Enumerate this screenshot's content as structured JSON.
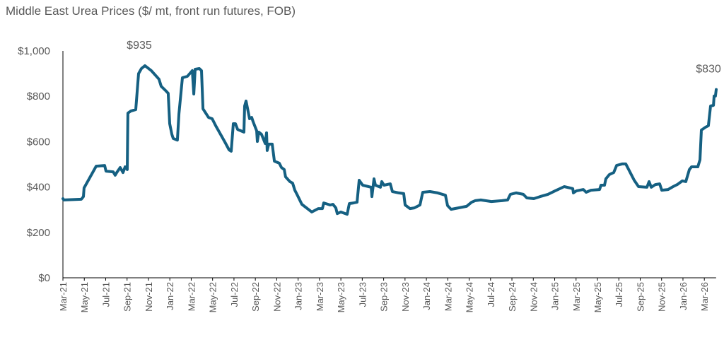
{
  "chart_data": {
    "type": "line",
    "title": "Middle East Urea Prices ($/ mt, front run futures, FOB)",
    "xlabel": "",
    "ylabel": "",
    "x_units": "months since Mar-21",
    "xlim": [
      0,
      61.1
    ],
    "ylim": [
      0,
      1000
    ],
    "grid": false,
    "legend": "none",
    "y_ticks": [
      0,
      200,
      400,
      600,
      800,
      1000
    ],
    "y_tick_labels": [
      "$0",
      "$200",
      "$400",
      "$600",
      "$800",
      "$1,000"
    ],
    "x_tick_labels": [
      "Mar-21",
      "May-21",
      "Jul-21",
      "Sep-21",
      "Nov-21",
      "Jan-22",
      "Mar-22",
      "May-22",
      "Jul-22",
      "Sep-22",
      "Nov-22",
      "Jan-23",
      "Mar-23",
      "May-23",
      "Jul-23",
      "Sep-23",
      "Nov-23",
      "Jan-24",
      "Mar-24",
      "May-24",
      "Jul-24",
      "Sep-24",
      "Nov-24",
      "Jan-25",
      "Mar-25",
      "May-25",
      "Jul-25",
      "Sep-25",
      "Nov-25",
      "Jan-26",
      "Mar-26"
    ],
    "x_tick_step_months": 2,
    "line_color": "#156082",
    "annotations": [
      {
        "text": "$935",
        "x": 7.67,
        "y": 935
      },
      {
        "text": "$830",
        "x": 61.11,
        "y": 830
      }
    ],
    "series": [
      {
        "name": "Middle East Urea",
        "points": [
          [
            0,
            349
          ],
          [
            0.07,
            343
          ],
          [
            1.72,
            346
          ],
          [
            1.92,
            358
          ],
          [
            1.98,
            396
          ],
          [
            3.11,
            492
          ],
          [
            3.9,
            495
          ],
          [
            4.03,
            470
          ],
          [
            4.7,
            467
          ],
          [
            4.89,
            452
          ],
          [
            5.03,
            464
          ],
          [
            5.36,
            486
          ],
          [
            5.62,
            464
          ],
          [
            5.82,
            489
          ],
          [
            6.02,
            477
          ],
          [
            6.08,
            726
          ],
          [
            6.35,
            735
          ],
          [
            6.81,
            741
          ],
          [
            7.08,
            900
          ],
          [
            7.34,
            922
          ],
          [
            7.67,
            935
          ],
          [
            8.27,
            913
          ],
          [
            8.99,
            875
          ],
          [
            9.19,
            844
          ],
          [
            9.59,
            826
          ],
          [
            9.85,
            813
          ],
          [
            9.99,
            679
          ],
          [
            10.19,
            632
          ],
          [
            10.32,
            614
          ],
          [
            10.71,
            607
          ],
          [
            10.85,
            723
          ],
          [
            11.18,
            882
          ],
          [
            11.64,
            888
          ],
          [
            12.1,
            913
          ],
          [
            12.24,
            810
          ],
          [
            12.37,
            919
          ],
          [
            12.76,
            922
          ],
          [
            12.96,
            913
          ],
          [
            13.1,
            745
          ],
          [
            13.62,
            707
          ],
          [
            13.96,
            701
          ],
          [
            14.29,
            670
          ],
          [
            15.15,
            598
          ],
          [
            15.54,
            564
          ],
          [
            15.74,
            558
          ],
          [
            15.94,
            679
          ],
          [
            16.14,
            679
          ],
          [
            16.34,
            654
          ],
          [
            16.93,
            642
          ],
          [
            17.0,
            757
          ],
          [
            17.13,
            779
          ],
          [
            17.46,
            701
          ],
          [
            17.66,
            707
          ],
          [
            17.79,
            688
          ],
          [
            18.12,
            648
          ],
          [
            18.19,
            601
          ],
          [
            18.32,
            642
          ],
          [
            18.58,
            632
          ],
          [
            18.92,
            592
          ],
          [
            19.05,
            639
          ],
          [
            19.11,
            561
          ],
          [
            19.25,
            589
          ],
          [
            19.58,
            589
          ],
          [
            19.78,
            514
          ],
          [
            20.24,
            505
          ],
          [
            20.44,
            486
          ],
          [
            20.7,
            477
          ],
          [
            20.83,
            445
          ],
          [
            21.23,
            424
          ],
          [
            21.49,
            417
          ],
          [
            21.69,
            386
          ],
          [
            21.89,
            368
          ],
          [
            22.35,
            324
          ],
          [
            23.28,
            290
          ],
          [
            23.88,
            305
          ],
          [
            24.27,
            305
          ],
          [
            24.4,
            330
          ],
          [
            25.0,
            321
          ],
          [
            25.26,
            324
          ],
          [
            25.53,
            308
          ],
          [
            25.66,
            283
          ],
          [
            25.99,
            290
          ],
          [
            26.59,
            280
          ],
          [
            26.79,
            327
          ],
          [
            27.18,
            330
          ],
          [
            27.51,
            333
          ],
          [
            27.71,
            430
          ],
          [
            28.04,
            408
          ],
          [
            28.84,
            399
          ],
          [
            28.9,
            358
          ],
          [
            29.1,
            436
          ],
          [
            29.23,
            408
          ],
          [
            29.7,
            399
          ],
          [
            29.83,
            424
          ],
          [
            30.03,
            408
          ],
          [
            30.62,
            414
          ],
          [
            30.82,
            380
          ],
          [
            31.42,
            374
          ],
          [
            31.88,
            371
          ],
          [
            32.01,
            321
          ],
          [
            32.47,
            305
          ],
          [
            32.87,
            308
          ],
          [
            33.4,
            321
          ],
          [
            33.66,
            377
          ],
          [
            34.33,
            380
          ],
          [
            35.05,
            374
          ],
          [
            35.78,
            364
          ],
          [
            35.98,
            318
          ],
          [
            36.31,
            302
          ],
          [
            37.76,
            315
          ],
          [
            38.23,
            333
          ],
          [
            38.56,
            340
          ],
          [
            39.09,
            343
          ],
          [
            40.08,
            336
          ],
          [
            41.07,
            340
          ],
          [
            41.6,
            343
          ],
          [
            41.86,
            368
          ],
          [
            42.39,
            374
          ],
          [
            43.06,
            368
          ],
          [
            43.39,
            352
          ],
          [
            44.05,
            349
          ],
          [
            44.64,
            358
          ],
          [
            45.37,
            368
          ],
          [
            46.03,
            383
          ],
          [
            46.89,
            402
          ],
          [
            47.69,
            393
          ],
          [
            47.75,
            374
          ],
          [
            48.02,
            383
          ],
          [
            48.68,
            389
          ],
          [
            48.94,
            377
          ],
          [
            49.4,
            386
          ],
          [
            50.2,
            389
          ],
          [
            50.33,
            408
          ],
          [
            50.66,
            408
          ],
          [
            50.79,
            436
          ],
          [
            51.12,
            455
          ],
          [
            51.52,
            464
          ],
          [
            51.79,
            495
          ],
          [
            52.31,
            502
          ],
          [
            52.65,
            502
          ],
          [
            53.44,
            430
          ],
          [
            53.84,
            402
          ],
          [
            54.63,
            399
          ],
          [
            54.83,
            424
          ],
          [
            55.03,
            399
          ],
          [
            55.42,
            411
          ],
          [
            55.82,
            414
          ],
          [
            56.02,
            386
          ],
          [
            56.61,
            389
          ],
          [
            57.08,
            402
          ],
          [
            57.47,
            411
          ],
          [
            57.94,
            427
          ],
          [
            58.27,
            424
          ],
          [
            58.6,
            477
          ],
          [
            58.8,
            489
          ],
          [
            59.39,
            489
          ],
          [
            59.59,
            520
          ],
          [
            59.72,
            651
          ],
          [
            60.12,
            664
          ],
          [
            60.38,
            670
          ],
          [
            60.58,
            757
          ],
          [
            60.85,
            760
          ],
          [
            60.91,
            801
          ],
          [
            61.04,
            801
          ],
          [
            61.11,
            830
          ]
        ]
      }
    ]
  }
}
